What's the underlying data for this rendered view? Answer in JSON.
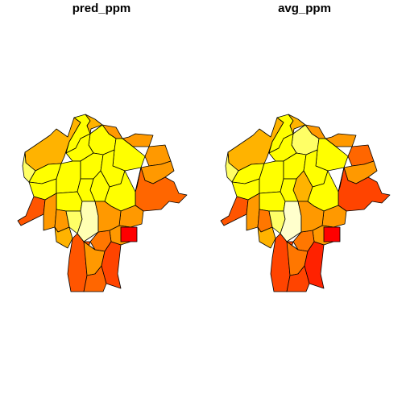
{
  "panels": [
    {
      "title": "pred_ppm",
      "regions": [
        {
          "id": "north-big",
          "color": "#FFB300"
        },
        {
          "id": "north-mid",
          "color": "#FFFF00"
        },
        {
          "id": "north-cap",
          "color": "#FFB300"
        },
        {
          "id": "ne-top",
          "color": "#FF9900"
        },
        {
          "id": "ne-right",
          "color": "#FF9900"
        },
        {
          "id": "center-n",
          "color": "#FFFF00"
        },
        {
          "id": "center-m",
          "color": "#FFFF00"
        },
        {
          "id": "center-e",
          "color": "#FFFF00"
        },
        {
          "id": "east-1",
          "color": "#FF9900"
        },
        {
          "id": "east-2",
          "color": "#FF6600"
        },
        {
          "id": "east-3",
          "color": "#FF5500"
        },
        {
          "id": "w-1",
          "color": "#FFFF66"
        },
        {
          "id": "w-2",
          "color": "#FFFF00"
        },
        {
          "id": "w-3",
          "color": "#FFFF00"
        },
        {
          "id": "w-4",
          "color": "#FFFF00"
        },
        {
          "id": "c-1",
          "color": "#FFFF00"
        },
        {
          "id": "c-2",
          "color": "#FFFF00"
        },
        {
          "id": "c-3",
          "color": "#FFFF00"
        },
        {
          "id": "c-4",
          "color": "#FFFF00"
        },
        {
          "id": "c-5",
          "color": "#FFFF00"
        },
        {
          "id": "c-6",
          "color": "#FFFF00"
        },
        {
          "id": "se-1",
          "color": "#FF9900"
        },
        {
          "id": "se-2",
          "color": "#FF9900"
        },
        {
          "id": "se-3",
          "color": "#FF7700"
        },
        {
          "id": "sw-arm",
          "color": "#FF5500"
        },
        {
          "id": "sw-1",
          "color": "#FF9900"
        },
        {
          "id": "sw-2",
          "color": "#FF9900"
        },
        {
          "id": "sw-3",
          "color": "#FFB300"
        },
        {
          "id": "sc-1",
          "color": "#FFFF66"
        },
        {
          "id": "sc-2",
          "color": "#FFFFB3"
        },
        {
          "id": "sc-3",
          "color": "#FF9900"
        },
        {
          "id": "red-sq",
          "color": "#FF0000"
        },
        {
          "id": "s-1",
          "color": "#FF5500"
        },
        {
          "id": "s-2",
          "color": "#FF9900"
        },
        {
          "id": "s-3",
          "color": "#FF6600"
        },
        {
          "id": "s-4",
          "color": "#FF4400"
        }
      ]
    },
    {
      "title": "avg_ppm",
      "regions": [
        {
          "id": "north-big",
          "color": "#FFB300"
        },
        {
          "id": "north-mid",
          "color": "#FFFF00"
        },
        {
          "id": "north-cap",
          "color": "#FFB300"
        },
        {
          "id": "ne-top",
          "color": "#FF9900"
        },
        {
          "id": "ne-right",
          "color": "#FF6600"
        },
        {
          "id": "center-n",
          "color": "#FFFF66"
        },
        {
          "id": "center-m",
          "color": "#FFFF00"
        },
        {
          "id": "center-e",
          "color": "#FFFF00"
        },
        {
          "id": "east-1",
          "color": "#FF9900"
        },
        {
          "id": "east-2",
          "color": "#FF4400"
        },
        {
          "id": "east-3",
          "color": "#FF4400"
        },
        {
          "id": "w-1",
          "color": "#FFFF66"
        },
        {
          "id": "w-2",
          "color": "#FFFF00"
        },
        {
          "id": "w-3",
          "color": "#FFFF00"
        },
        {
          "id": "w-4",
          "color": "#FFFF00"
        },
        {
          "id": "c-1",
          "color": "#FFFF00"
        },
        {
          "id": "c-2",
          "color": "#FFFF00"
        },
        {
          "id": "c-3",
          "color": "#FFB300"
        },
        {
          "id": "c-4",
          "color": "#FFFF00"
        },
        {
          "id": "c-5",
          "color": "#FFFF00"
        },
        {
          "id": "c-6",
          "color": "#FFFF00"
        },
        {
          "id": "se-1",
          "color": "#FF9900"
        },
        {
          "id": "se-2",
          "color": "#FF9900"
        },
        {
          "id": "se-3",
          "color": "#FF7700"
        },
        {
          "id": "sw-arm",
          "color": "#FF5500"
        },
        {
          "id": "sw-1",
          "color": "#FF9900"
        },
        {
          "id": "sw-2",
          "color": "#FF7700"
        },
        {
          "id": "sw-3",
          "color": "#FFB300"
        },
        {
          "id": "sc-1",
          "color": "#FFFF66"
        },
        {
          "id": "sc-2",
          "color": "#FFFFCC"
        },
        {
          "id": "sc-3",
          "color": "#FF9900"
        },
        {
          "id": "red-sq",
          "color": "#FF0000"
        },
        {
          "id": "s-1",
          "color": "#FF4400"
        },
        {
          "id": "s-2",
          "color": "#FF7700"
        },
        {
          "id": "s-3",
          "color": "#FF4400"
        },
        {
          "id": "s-4",
          "color": "#FF2200"
        }
      ]
    }
  ]
}
